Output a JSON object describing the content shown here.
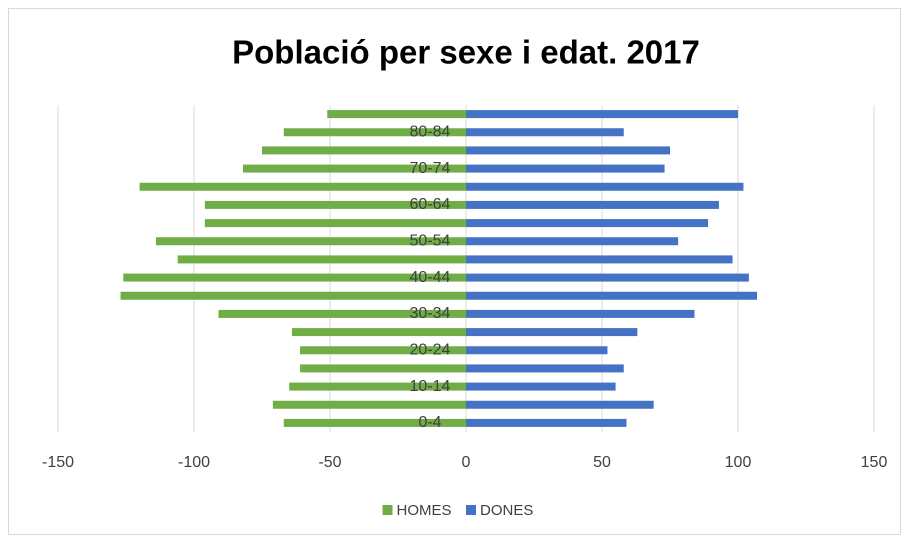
{
  "chart_data": {
    "type": "bar",
    "orientation": "horizontal",
    "stacked": false,
    "title": "Població per sexe i edat. 2017",
    "categories": [
      "0-4",
      null,
      "10-14",
      null,
      "20-24",
      null,
      "30-34",
      null,
      "40-44",
      null,
      "50-54",
      null,
      "60-64",
      null,
      "70-74",
      null,
      "80-84",
      null
    ],
    "series": [
      {
        "name": "HOMES",
        "color": "#70ad47",
        "values": [
          -67,
          -71,
          -65,
          -61,
          -61,
          -64,
          -91,
          -127,
          -126,
          -106,
          -114,
          -96,
          -96,
          -120,
          -82,
          -75,
          -67,
          -51
        ]
      },
      {
        "name": "DONES",
        "color": "#4472c4",
        "values": [
          59,
          69,
          55,
          58,
          52,
          63,
          84,
          107,
          104,
          98,
          78,
          89,
          93,
          102,
          73,
          75,
          58,
          100
        ]
      }
    ],
    "xlim": [
      -150,
      150
    ],
    "xticks": [
      -150,
      -100,
      -50,
      0,
      50,
      100,
      150
    ],
    "grid": true,
    "legend": "bottom"
  }
}
